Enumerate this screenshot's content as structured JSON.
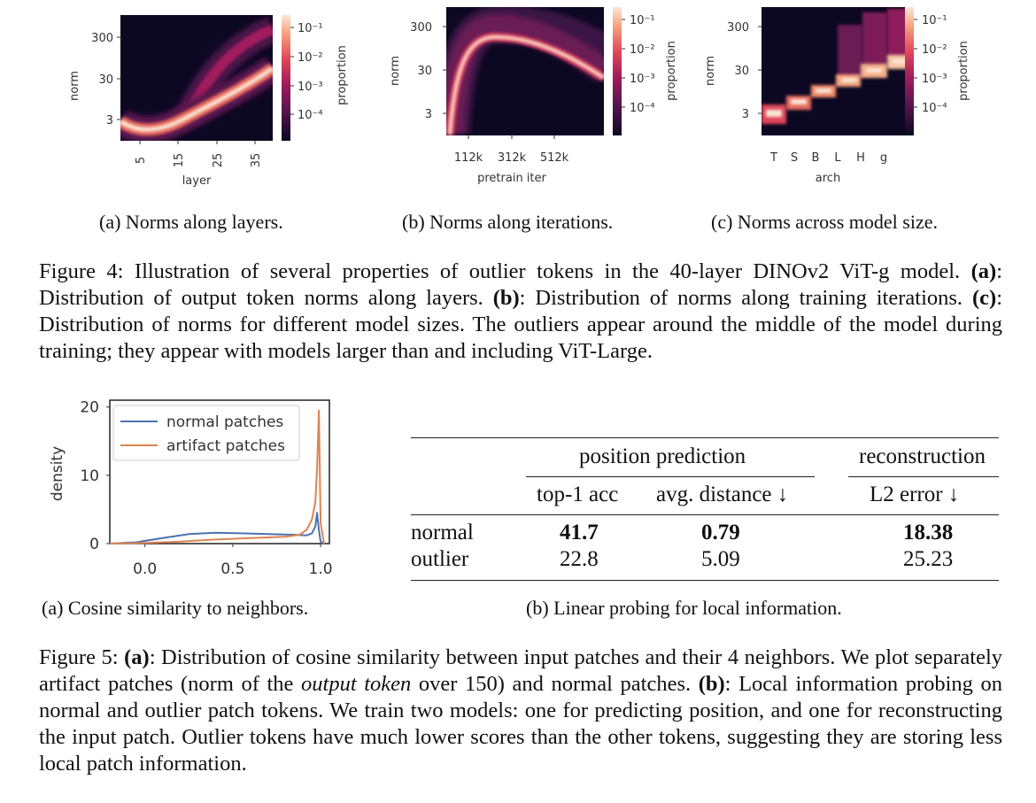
{
  "figure4": {
    "panels": [
      {
        "id": "a",
        "ylabel": "norm",
        "xlabel": "layer",
        "yticks": [
          "300",
          "30",
          "3"
        ],
        "xticks": [
          "5",
          "15",
          "25",
          "35"
        ],
        "colorbar_label": "proportion",
        "colorbar_ticks": [
          "10⁻¹",
          "10⁻²",
          "10⁻³",
          "10⁻⁴"
        ],
        "caption": "(a) Norms along layers."
      },
      {
        "id": "b",
        "ylabel": "norm",
        "xlabel": "pretrain iter",
        "yticks": [
          "300",
          "30",
          "3"
        ],
        "xticks": [
          "112k",
          "312k",
          "512k"
        ],
        "colorbar_label": "proportion",
        "colorbar_ticks": [
          "10⁻¹",
          "10⁻²",
          "10⁻³",
          "10⁻⁴"
        ],
        "caption": "(b) Norms along iterations."
      },
      {
        "id": "c",
        "ylabel": "norm",
        "xlabel": "arch",
        "yticks": [
          "300",
          "30",
          "3"
        ],
        "xticks": [
          "T",
          "S",
          "B",
          "L",
          "H",
          "g"
        ],
        "colorbar_label": "proportion",
        "colorbar_ticks": [
          "10⁻¹",
          "10⁻²",
          "10⁻³",
          "10⁻⁴"
        ],
        "caption": "(c) Norms across model size."
      }
    ],
    "caption": {
      "label": "Figure 4:",
      "intro": "Illustration of several properties of outlier tokens in the 40-layer DINOv2 ViT-g model.",
      "a_tag": "(a)",
      "a_text": ": Distribution of output token norms along layers.",
      "b_tag": "(b)",
      "b_text": ": Distribution of norms along training iterations.",
      "c_tag": "(c)",
      "c_text": ": Distribution of norms for different model sizes. The outliers appear around the middle of the model during training; they appear with models larger than and including ViT-Large."
    }
  },
  "figure5": {
    "plot": {
      "ylabel": "density",
      "yticks": [
        "20",
        "10",
        "0"
      ],
      "xticks": [
        "0.0",
        "0.5",
        "1.0"
      ],
      "legend": [
        "normal patches",
        "artifact patches"
      ],
      "caption": "(a) Cosine similarity to neighbors."
    },
    "table": {
      "group_position": "position prediction",
      "group_reconstruction": "reconstruction",
      "col_top1": "top-1 acc",
      "col_dist": "avg. distance ↓",
      "col_l2": "L2 error ↓",
      "rows": [
        {
          "name": "normal",
          "top1": "41.7",
          "dist": "0.79",
          "l2": "18.38"
        },
        {
          "name": "outlier",
          "top1": "22.8",
          "dist": "5.09",
          "l2": "25.23"
        }
      ],
      "caption": "(b) Linear probing for local information."
    },
    "caption": {
      "label": "Figure 5:",
      "a_tag": "(a)",
      "a_text": ": Distribution of cosine similarity between input patches and their 4 neighbors. We plot separately artifact patches (norm of the ",
      "a_italic": "output token",
      "a_text2": " over 150) and normal patches.",
      "b_tag": "(b)",
      "b_text": ": Local information probing on normal and outlier patch tokens. We train two models: one for predicting position, and one for reconstructing the input patch. Outlier tokens have much lower scores than the other tokens, suggesting they are storing less local patch information."
    }
  },
  "colors": {
    "heatmap_bg": "#0d0822",
    "normal_line": "#4c72b0",
    "artifact_line": "#dd8452"
  },
  "chart_data": [
    {
      "type": "heatmap",
      "panel": "Figure 4 (a)",
      "xlabel": "layer",
      "ylabel": "norm",
      "y_scale": "log",
      "xticks": [
        5,
        15,
        25,
        35
      ],
      "yticks": [
        3,
        30,
        300
      ],
      "colorbar": "proportion",
      "colorbar_scale": "log",
      "colorbar_range": [
        3e-05,
        0.3
      ],
      "main_band_norm": [
        [
          1,
          5
        ],
        [
          5,
          3
        ],
        [
          10,
          3.5
        ],
        [
          15,
          5
        ],
        [
          20,
          7
        ],
        [
          25,
          10
        ],
        [
          30,
          16
        ],
        [
          35,
          24
        ],
        [
          39,
          30
        ]
      ],
      "outlier_band_norm": [
        [
          15,
          6
        ],
        [
          20,
          20
        ],
        [
          25,
          80
        ],
        [
          30,
          170
        ],
        [
          35,
          230
        ],
        [
          39,
          240
        ]
      ]
    },
    {
      "type": "heatmap",
      "panel": "Figure 4 (b)",
      "xlabel": "pretrain iter",
      "ylabel": "norm",
      "y_scale": "log",
      "xticks": [
        "112k",
        "312k",
        "512k"
      ],
      "yticks": [
        3,
        30,
        300
      ],
      "colorbar": "proportion",
      "colorbar_scale": "log",
      "colorbar_range": [
        3e-05,
        0.3
      ],
      "band_norm": [
        [
          "12k",
          4
        ],
        [
          "50k",
          40
        ],
        [
          "112k",
          120
        ],
        [
          "212k",
          110
        ],
        [
          "312k",
          90
        ],
        [
          "412k",
          65
        ],
        [
          "512k",
          40
        ],
        [
          "612k",
          30
        ]
      ]
    },
    {
      "type": "heatmap",
      "panel": "Figure 4 (c)",
      "xlabel": "arch",
      "ylabel": "norm",
      "y_scale": "log",
      "categories": [
        "T",
        "S",
        "B",
        "L",
        "H",
        "g"
      ],
      "yticks": [
        3,
        30,
        300
      ],
      "colorbar": "proportion",
      "colorbar_scale": "log",
      "colorbar_range": [
        3e-05,
        0.3
      ],
      "peak_norm": [
        3,
        5,
        8,
        14,
        25,
        35
      ],
      "outlier_range": [
        null,
        null,
        null,
        [
          20,
          60
        ],
        [
          40,
          150
        ],
        [
          50,
          300
        ]
      ]
    },
    {
      "type": "line",
      "panel": "Figure 5 (a)",
      "xlabel": "",
      "ylabel": "density",
      "xlim": [
        -0.2,
        1.05
      ],
      "ylim": [
        0,
        21
      ],
      "xticks": [
        0.0,
        0.5,
        1.0
      ],
      "yticks": [
        0,
        10,
        20
      ],
      "legend_position": "top-left",
      "series": [
        {
          "name": "normal patches",
          "x": [
            -0.2,
            -0.05,
            0.1,
            0.25,
            0.4,
            0.55,
            0.7,
            0.85,
            0.92,
            0.95,
            0.97,
            0.98,
            0.99,
            1.0,
            1.02
          ],
          "y": [
            0.0,
            0.2,
            0.8,
            1.4,
            1.6,
            1.5,
            1.4,
            1.3,
            1.2,
            1.5,
            2.5,
            4.5,
            2.0,
            0.3,
            0.0
          ]
        },
        {
          "name": "artifact patches",
          "x": [
            -0.2,
            0.0,
            0.2,
            0.4,
            0.6,
            0.8,
            0.88,
            0.92,
            0.95,
            0.97,
            0.98,
            0.99,
            1.0,
            1.02
          ],
          "y": [
            0.0,
            0.1,
            0.3,
            0.6,
            0.8,
            1.0,
            1.3,
            2.0,
            3.5,
            6.0,
            11.0,
            19.5,
            3.0,
            0.0
          ]
        }
      ]
    }
  ]
}
